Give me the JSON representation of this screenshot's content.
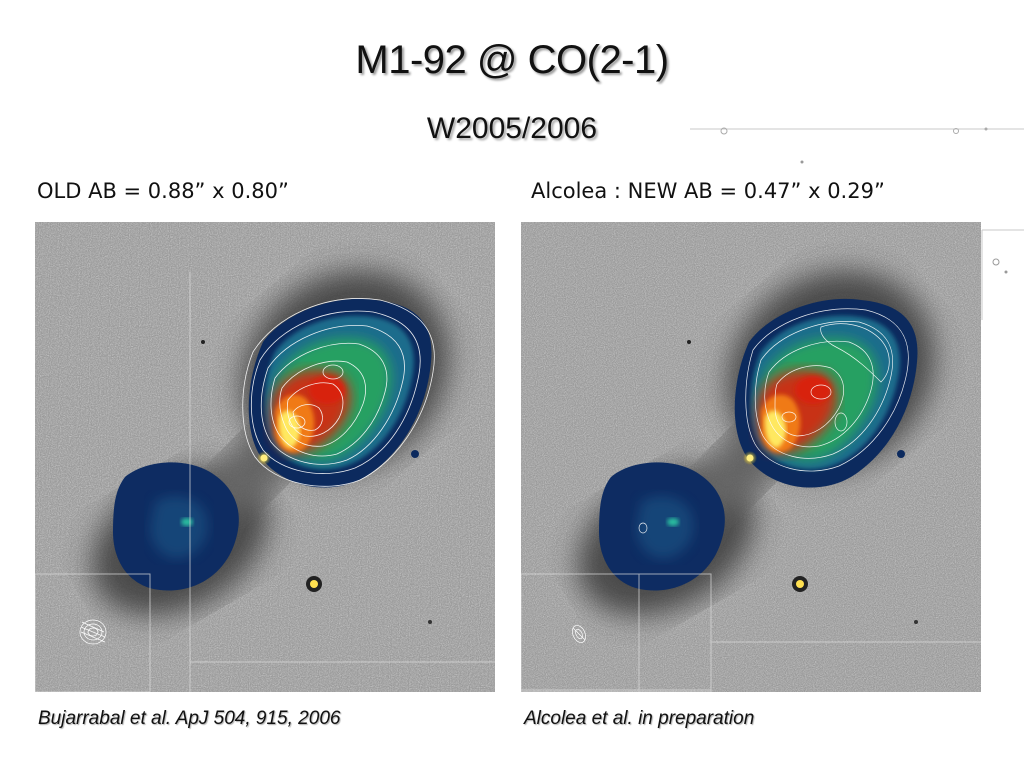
{
  "slide": {
    "title": "M1-92 @ CO(2-1)",
    "subtitle": "W2005/2006"
  },
  "panels": [
    {
      "label": "OLD AB = 0.88” x 0.80”",
      "caption": "Bujarrabal et al. ApJ 504, 915, 2006",
      "contour_set": "old"
    },
    {
      "label": "Alcolea : NEW AB = 0.47” x 0.29”",
      "caption": "Alcolea et al. in preparation",
      "contour_set": "new"
    }
  ],
  "colors": {
    "background": "#ffffff",
    "sky": "#9c9c9c",
    "lobe_blue": "#0c2a5e",
    "lobe_green": "#22a060",
    "lobe_red": "#d02010",
    "lobe_yellow": "#ffe850",
    "contour": "#ffffff"
  }
}
